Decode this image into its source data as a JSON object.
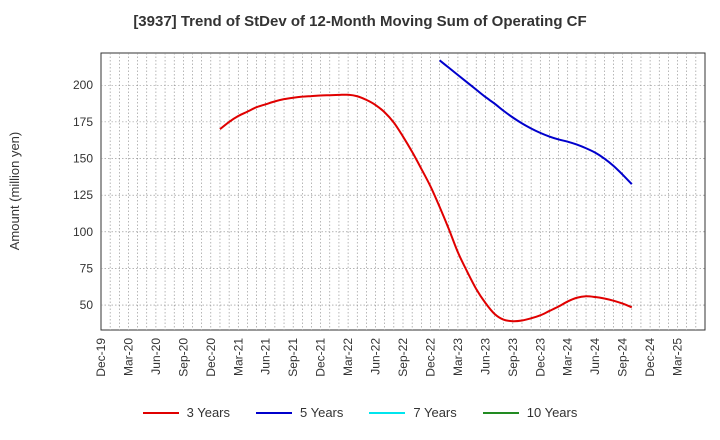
{
  "chart_data": {
    "type": "line",
    "title": "[3937]  Trend of StDev of 12-Month Moving Sum of Operating CF",
    "ylabel": "Amount (million yen)",
    "xlabel": "",
    "x_tick_labels": [
      "Dec-19",
      "Mar-20",
      "Jun-20",
      "Sep-20",
      "Dec-20",
      "Mar-21",
      "Jun-21",
      "Sep-21",
      "Dec-21",
      "Mar-22",
      "Jun-22",
      "Sep-22",
      "Dec-22",
      "Mar-23",
      "Jun-23",
      "Sep-23",
      "Dec-23",
      "Mar-24",
      "Jun-24",
      "Sep-24",
      "Dec-24",
      "Mar-25"
    ],
    "y_ticks": [
      50,
      75,
      100,
      125,
      150,
      175,
      200
    ],
    "ylim": [
      33,
      222
    ],
    "grid": true,
    "legend_position": "bottom",
    "series": [
      {
        "name": "3 Years",
        "color": "#e00000",
        "points": [
          [
            "2021-01",
            170
          ],
          [
            "2021-02",
            175
          ],
          [
            "2021-03",
            179
          ],
          [
            "2021-04",
            182
          ],
          [
            "2021-05",
            185
          ],
          [
            "2021-06",
            187
          ],
          [
            "2021-07",
            189
          ],
          [
            "2021-08",
            190.5
          ],
          [
            "2021-09",
            191.5
          ],
          [
            "2021-10",
            192.2
          ],
          [
            "2021-11",
            192.6
          ],
          [
            "2021-12",
            193
          ],
          [
            "2022-01",
            193.2
          ],
          [
            "2022-02",
            193.4
          ],
          [
            "2022-03",
            193.5
          ],
          [
            "2022-04",
            192.5
          ],
          [
            "2022-05",
            190
          ],
          [
            "2022-06",
            186.5
          ],
          [
            "2022-07",
            181.5
          ],
          [
            "2022-08",
            174.5
          ],
          [
            "2022-09",
            165
          ],
          [
            "2022-10",
            154.5
          ],
          [
            "2022-11",
            143
          ],
          [
            "2022-12",
            131
          ],
          [
            "2023-01",
            117
          ],
          [
            "2023-02",
            102
          ],
          [
            "2023-03",
            86
          ],
          [
            "2023-04",
            73
          ],
          [
            "2023-05",
            61
          ],
          [
            "2023-06",
            51.5
          ],
          [
            "2023-07",
            44
          ],
          [
            "2023-08",
            40
          ],
          [
            "2023-09",
            39
          ],
          [
            "2023-10",
            39.5
          ],
          [
            "2023-11",
            41
          ],
          [
            "2023-12",
            43
          ],
          [
            "2024-01",
            46
          ],
          [
            "2024-02",
            49
          ],
          [
            "2024-03",
            52.5
          ],
          [
            "2024-04",
            55
          ],
          [
            "2024-05",
            56
          ],
          [
            "2024-06",
            55.5
          ],
          [
            "2024-07",
            54.5
          ],
          [
            "2024-08",
            53
          ],
          [
            "2024-09",
            51
          ],
          [
            "2024-10",
            48.5
          ]
        ]
      },
      {
        "name": "5 Years",
        "color": "#0000cc",
        "points": [
          [
            "2023-01",
            217
          ],
          [
            "2023-02",
            212
          ],
          [
            "2023-03",
            207
          ],
          [
            "2023-04",
            202
          ],
          [
            "2023-05",
            197
          ],
          [
            "2023-06",
            192
          ],
          [
            "2023-07",
            187.5
          ],
          [
            "2023-08",
            182.5
          ],
          [
            "2023-09",
            178
          ],
          [
            "2023-10",
            174
          ],
          [
            "2023-11",
            170.5
          ],
          [
            "2023-12",
            167.5
          ],
          [
            "2024-01",
            165
          ],
          [
            "2024-02",
            163
          ],
          [
            "2024-03",
            161.5
          ],
          [
            "2024-04",
            159.5
          ],
          [
            "2024-05",
            157
          ],
          [
            "2024-06",
            154
          ],
          [
            "2024-07",
            150
          ],
          [
            "2024-08",
            145
          ],
          [
            "2024-09",
            139
          ],
          [
            "2024-10",
            132.5
          ]
        ]
      },
      {
        "name": "7 Years",
        "color": "#00e5ee",
        "points": []
      },
      {
        "name": "10 Years",
        "color": "#228b22",
        "points": []
      }
    ]
  }
}
